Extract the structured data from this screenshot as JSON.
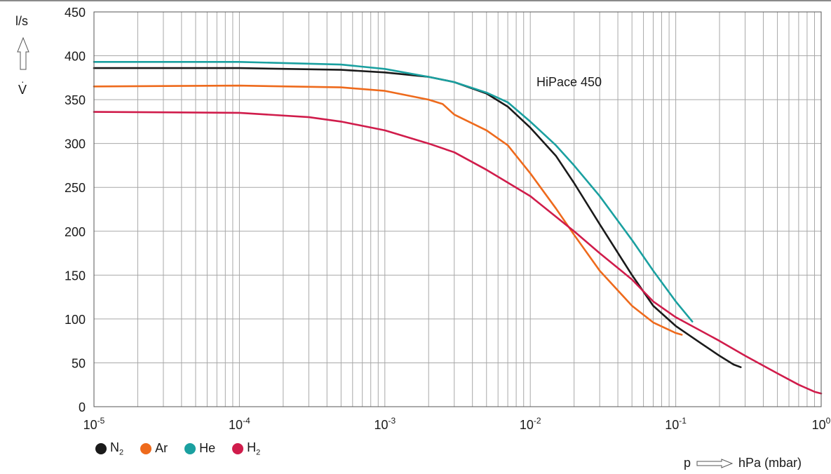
{
  "chart_data": {
    "type": "line",
    "title": "",
    "annotation": "HiPace 450",
    "ylabel": "l/s",
    "ysymbol": "V",
    "xlabel_symbol": "p",
    "xlabel_unit": "hPa (mbar)",
    "xscale": "log",
    "xlim": [
      1e-05,
      1
    ],
    "ylim": [
      0,
      450
    ],
    "yticks": [
      "0",
      "50",
      "100",
      "150",
      "200",
      "250",
      "300",
      "350",
      "400",
      "450"
    ],
    "xticks": [
      {
        "base": "10",
        "exp": "-5"
      },
      {
        "base": "10",
        "exp": "-4"
      },
      {
        "base": "10",
        "exp": "-3"
      },
      {
        "base": "10",
        "exp": "-2"
      },
      {
        "base": "10",
        "exp": "-1"
      },
      {
        "base": "10",
        "exp": "0"
      }
    ],
    "grid": true,
    "legend_position": "bottom-left",
    "series": [
      {
        "name": "N",
        "sub": "2",
        "color": "#1a1a1a",
        "x": [
          1e-05,
          0.0001,
          0.0005,
          0.001,
          0.002,
          0.003,
          0.005,
          0.007,
          0.01,
          0.015,
          0.02,
          0.03,
          0.05,
          0.07,
          0.1,
          0.15,
          0.2,
          0.25,
          0.28
        ],
        "y": [
          386,
          386,
          384,
          381,
          376,
          370,
          357,
          342,
          318,
          286,
          255,
          208,
          150,
          115,
          92,
          72,
          58,
          48,
          45
        ]
      },
      {
        "name": "Ar",
        "sub": "",
        "color": "#ee6a1c",
        "x": [
          1e-05,
          0.0001,
          0.0005,
          0.001,
          0.002,
          0.0025,
          0.003,
          0.005,
          0.007,
          0.01,
          0.015,
          0.02,
          0.03,
          0.05,
          0.07,
          0.1,
          0.11
        ],
        "y": [
          365,
          366,
          364,
          360,
          350,
          345,
          333,
          315,
          298,
          266,
          226,
          196,
          155,
          115,
          96,
          84,
          82
        ]
      },
      {
        "name": "He",
        "sub": "",
        "color": "#1aa0a0",
        "x": [
          1e-05,
          0.0001,
          0.0005,
          0.001,
          0.002,
          0.003,
          0.005,
          0.007,
          0.01,
          0.015,
          0.02,
          0.03,
          0.05,
          0.07,
          0.1,
          0.13
        ],
        "y": [
          393,
          393,
          390,
          385,
          376,
          370,
          358,
          347,
          325,
          298,
          275,
          240,
          190,
          155,
          120,
          97
        ]
      },
      {
        "name": "H",
        "sub": "2",
        "color": "#d01c4b",
        "x": [
          1e-05,
          0.0001,
          0.0003,
          0.0005,
          0.001,
          0.002,
          0.003,
          0.005,
          0.01,
          0.02,
          0.03,
          0.05,
          0.07,
          0.1,
          0.2,
          0.3,
          0.5,
          0.7,
          0.9,
          1
        ],
        "y": [
          336,
          335,
          330,
          325,
          315,
          300,
          290,
          270,
          240,
          200,
          175,
          145,
          120,
          102,
          75,
          58,
          38,
          25,
          17,
          15
        ]
      }
    ]
  }
}
